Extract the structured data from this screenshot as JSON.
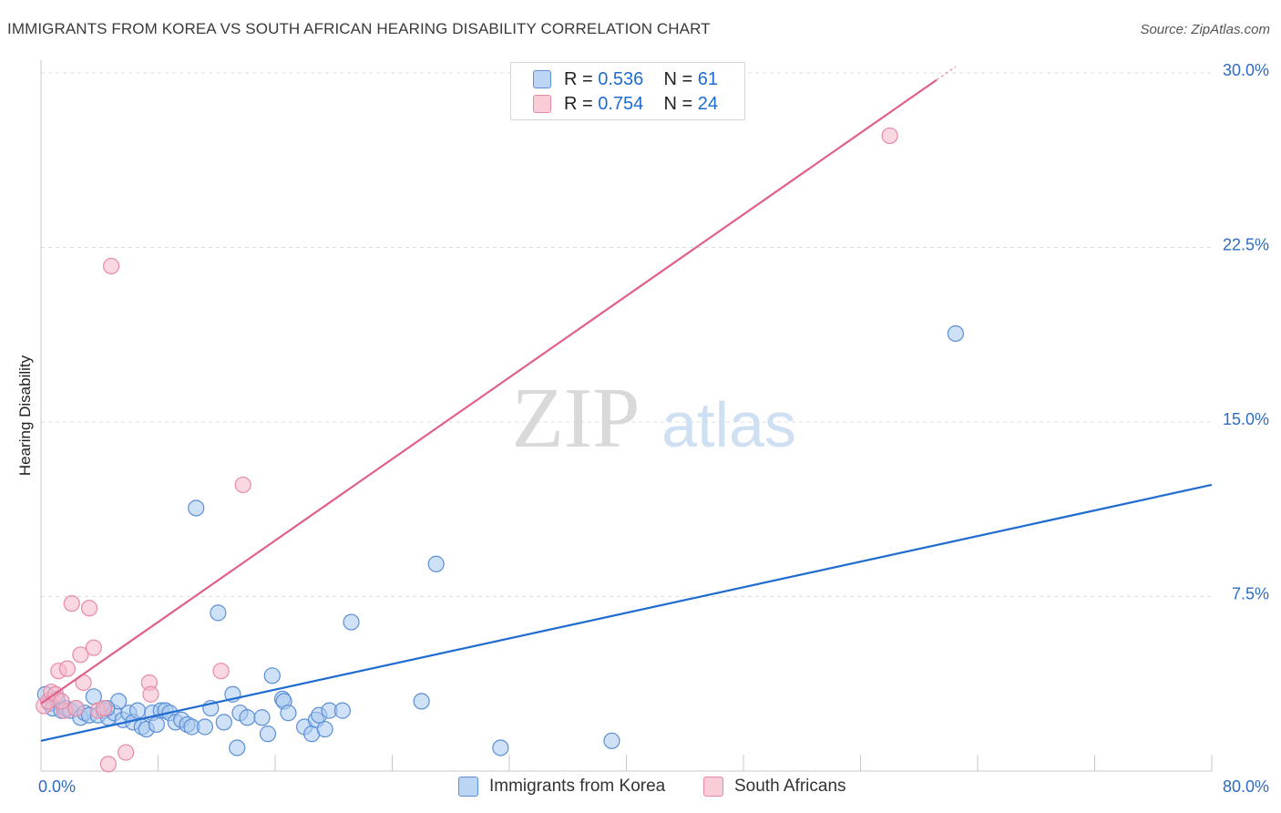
{
  "title": "IMMIGRANTS FROM KOREA VS SOUTH AFRICAN HEARING DISABILITY CORRELATION CHART",
  "source": "Source: ZipAtlas.com",
  "watermark": {
    "zip": "ZIP",
    "atlas": "atlas"
  },
  "legend": {
    "series1": {
      "r_label": "R =",
      "r_value": "0.536",
      "n_label": "N =",
      "n_value": "61"
    },
    "series2": {
      "r_label": "R =",
      "r_value": "0.754",
      "n_label": "N =",
      "n_value": "24"
    }
  },
  "colors": {
    "blue_fill": "#a8c8f0",
    "blue_stroke": "#5b8fd6",
    "blue_line": "#1f6bd0",
    "pink_fill": "#f6b8c8",
    "pink_stroke": "#e88aa6",
    "pink_line": "#e0608a",
    "grid": "#dddddd",
    "tick_label": "#2f6bc4"
  },
  "chart_data": {
    "type": "scatter",
    "xlabel": "",
    "ylabel": "Hearing Disability",
    "xlim": [
      0,
      80
    ],
    "ylim": [
      0,
      30
    ],
    "x_tick_labels": [
      "0.0%",
      "80.0%"
    ],
    "y_ticks": [
      7.5,
      15.0,
      22.5,
      30.0
    ],
    "y_tick_labels": [
      "7.5%",
      "15.0%",
      "22.5%",
      "30.0%"
    ],
    "grid": true,
    "legend_position": "top-center",
    "series": [
      {
        "name": "Immigrants from Korea",
        "color": "#a8c8f0",
        "trendline": {
          "x": [
            0,
            80
          ],
          "y": [
            1.3,
            12.3
          ]
        },
        "points": [
          [
            0.3,
            3.3
          ],
          [
            0.6,
            2.9
          ],
          [
            0.8,
            2.7
          ],
          [
            1.1,
            3.1
          ],
          [
            1.4,
            2.6
          ],
          [
            1.7,
            2.7
          ],
          [
            2.0,
            2.6
          ],
          [
            2.4,
            2.7
          ],
          [
            2.7,
            2.3
          ],
          [
            3.0,
            2.5
          ],
          [
            3.3,
            2.4
          ],
          [
            3.6,
            3.2
          ],
          [
            3.9,
            2.4
          ],
          [
            4.3,
            2.6
          ],
          [
            4.6,
            2.3
          ],
          [
            5.0,
            2.5
          ],
          [
            5.3,
            3.0
          ],
          [
            5.6,
            2.2
          ],
          [
            6.0,
            2.5
          ],
          [
            6.3,
            2.1
          ],
          [
            6.6,
            2.6
          ],
          [
            6.9,
            1.9
          ],
          [
            7.2,
            1.8
          ],
          [
            7.6,
            2.5
          ],
          [
            7.9,
            2.0
          ],
          [
            8.2,
            2.6
          ],
          [
            8.5,
            2.6
          ],
          [
            8.8,
            2.5
          ],
          [
            9.2,
            2.1
          ],
          [
            9.6,
            2.2
          ],
          [
            10.0,
            2.0
          ],
          [
            10.3,
            1.9
          ],
          [
            10.6,
            11.3
          ],
          [
            11.2,
            1.9
          ],
          [
            11.6,
            2.7
          ],
          [
            12.1,
            6.8
          ],
          [
            12.5,
            2.1
          ],
          [
            13.1,
            3.3
          ],
          [
            13.4,
            1.0
          ],
          [
            13.6,
            2.5
          ],
          [
            14.1,
            2.3
          ],
          [
            15.1,
            2.3
          ],
          [
            15.5,
            1.6
          ],
          [
            15.8,
            4.1
          ],
          [
            16.5,
            3.1
          ],
          [
            16.6,
            3.0
          ],
          [
            16.9,
            2.5
          ],
          [
            18.0,
            1.9
          ],
          [
            18.5,
            1.6
          ],
          [
            18.8,
            2.2
          ],
          [
            19.0,
            2.4
          ],
          [
            19.4,
            1.8
          ],
          [
            19.7,
            2.6
          ],
          [
            20.6,
            2.6
          ],
          [
            21.2,
            6.4
          ],
          [
            26.0,
            3.0
          ],
          [
            27.0,
            8.9
          ],
          [
            31.4,
            1.0
          ],
          [
            39.0,
            1.3
          ],
          [
            62.5,
            18.8
          ],
          [
            4.5,
            2.7
          ]
        ]
      },
      {
        "name": "South Africans",
        "color": "#f6b8c8",
        "trendline": {
          "x": [
            0,
            61.2
          ],
          "y": [
            2.9,
            29.7
          ]
        },
        "points": [
          [
            0.2,
            2.8
          ],
          [
            0.5,
            3.0
          ],
          [
            0.7,
            3.4
          ],
          [
            1.0,
            3.3
          ],
          [
            1.2,
            4.3
          ],
          [
            1.6,
            2.6
          ],
          [
            1.8,
            4.4
          ],
          [
            2.1,
            7.2
          ],
          [
            2.4,
            2.7
          ],
          [
            2.7,
            5.0
          ],
          [
            2.9,
            3.8
          ],
          [
            3.3,
            7.0
          ],
          [
            3.6,
            5.3
          ],
          [
            3.9,
            2.6
          ],
          [
            4.3,
            2.7
          ],
          [
            4.6,
            0.3
          ],
          [
            4.8,
            21.7
          ],
          [
            5.8,
            0.8
          ],
          [
            7.4,
            3.8
          ],
          [
            7.5,
            3.3
          ],
          [
            12.3,
            4.3
          ],
          [
            13.8,
            12.3
          ],
          [
            58.0,
            27.3
          ],
          [
            1.4,
            3.0
          ]
        ]
      }
    ]
  }
}
